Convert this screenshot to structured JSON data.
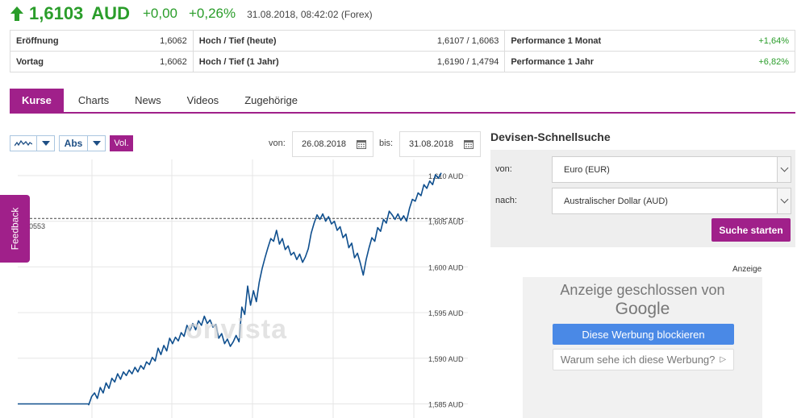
{
  "quote": {
    "price": "1,6103",
    "currency": "AUD",
    "change_abs": "+0,00",
    "change_pct": "+0,26%",
    "timestamp": "31.08.2018, 08:42:02 (Forex)",
    "up_color": "#2a9d2a"
  },
  "stats": {
    "row1": {
      "open_label": "Eröffnung",
      "open_value": "1,6062",
      "hl_day_label": "Hoch / Tief (heute)",
      "hl_day_value": "1,6107 / 1,6063",
      "perf_month_label": "Performance 1 Monat",
      "perf_month_value": "+1,64%"
    },
    "row2": {
      "prev_label": "Vortag",
      "prev_value": "1,6062",
      "hl_year_label": "Hoch / Tief (1 Jahr)",
      "hl_year_value": "1,6190 / 1,4794",
      "perf_year_label": "Performance 1 Jahr",
      "perf_year_value": "+6,82%"
    }
  },
  "tabs": [
    "Kurse",
    "Charts",
    "News",
    "Videos",
    "Zugehörige"
  ],
  "active_tab": "Kurse",
  "accent_color": "#a0208a",
  "toolbar": {
    "chart_type_icon": "line-chart-icon",
    "mode_label": "Abs",
    "vol_label": "Vol."
  },
  "date_range": {
    "from_label": "von:",
    "from_value": "26.08.2018",
    "to_label": "bis:",
    "to_value": "31.08.2018"
  },
  "chart_data": {
    "type": "line",
    "title": "",
    "xlabel": "",
    "ylabel": "",
    "ylim": [
      1.5835,
      1.6115
    ],
    "y_ticks": [
      "1,610 AUD",
      "1,605 AUD",
      "1,600 AUD",
      "1,595 AUD",
      "1,590 AUD",
      "1,585 AUD"
    ],
    "y_tick_values": [
      1.61,
      1.605,
      1.6,
      1.595,
      1.59,
      1.585
    ],
    "reference_line": {
      "value": 1.6053,
      "label": "0553"
    },
    "watermark": "onvista",
    "line_color": "#0f4f8e",
    "series": [
      {
        "values": [
          1.585,
          1.585,
          1.585,
          1.585,
          1.585,
          1.585,
          1.5849,
          1.5858,
          1.5862,
          1.5856,
          1.5868,
          1.5862,
          1.5873,
          1.5867,
          1.5878,
          1.5874,
          1.5883,
          1.5877,
          1.5885,
          1.5881,
          1.5887,
          1.5883,
          1.589,
          1.5885,
          1.5892,
          1.5888,
          1.5896,
          1.5893,
          1.5901,
          1.5897,
          1.5911,
          1.5904,
          1.5914,
          1.5908,
          1.5922,
          1.5916,
          1.5923,
          1.5919,
          1.5928,
          1.5924,
          1.5936,
          1.593,
          1.5938,
          1.5931,
          1.5941,
          1.5936,
          1.5946,
          1.5938,
          1.5942,
          1.5934,
          1.5937,
          1.5922,
          1.5927,
          1.5916,
          1.5921,
          1.5913,
          1.5918,
          1.5925,
          1.5918,
          1.5956,
          1.5948,
          1.5979,
          1.5958,
          1.5974,
          1.5962,
          1.5983,
          1.5998,
          1.601,
          1.6021,
          1.6031,
          1.6028,
          1.604,
          1.6025,
          1.6031,
          1.6019,
          1.6023,
          1.6013,
          1.6016,
          1.6008,
          1.6014,
          1.6005,
          1.6011,
          1.602,
          1.6037,
          1.6048,
          1.6057,
          1.6052,
          1.6058,
          1.605,
          1.6055,
          1.6047,
          1.605,
          1.604,
          1.6044,
          1.6032,
          1.6036,
          1.6021,
          1.6026,
          1.601,
          1.6015,
          1.6004,
          1.5991,
          1.6008,
          1.6021,
          1.6032,
          1.6028,
          1.6043,
          1.6039,
          1.6052,
          1.6048,
          1.6061,
          1.6057,
          1.6052,
          1.6058,
          1.6051,
          1.6056,
          1.605,
          1.6064,
          1.6074,
          1.6072,
          1.6081,
          1.6078,
          1.609,
          1.6086,
          1.6094,
          1.609,
          1.6101,
          1.6097,
          1.6103
        ]
      }
    ],
    "grid": true
  },
  "fx_search": {
    "title": "Devisen-Schnellsuche",
    "from_label": "von:",
    "from_value": "Euro (EUR)",
    "to_label": "nach:",
    "to_value": "Australischer Dollar (AUD)",
    "submit_label": "Suche starten"
  },
  "ad": {
    "label": "Anzeige",
    "closed_text": "Anzeige geschlossen von",
    "brand": "Google",
    "block_button": "Diese Werbung blockieren",
    "why_button": "Warum sehe ich diese Werbung?",
    "block_button_color": "#4a89e6"
  },
  "feedback": {
    "label": "Feedback"
  }
}
